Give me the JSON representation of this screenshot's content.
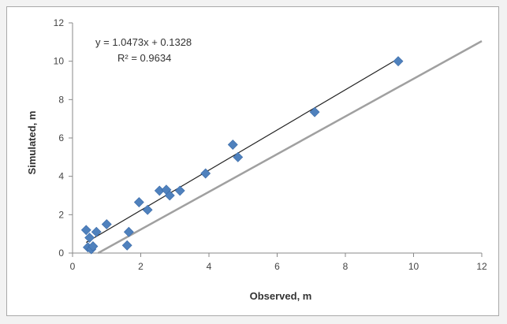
{
  "chart_data": {
    "type": "scatter",
    "title": "",
    "xlabel": "Observed, m",
    "ylabel": "Simulated, m",
    "xlim": [
      0,
      12
    ],
    "ylim": [
      0,
      12
    ],
    "xticks": [
      0,
      2,
      4,
      6,
      8,
      10,
      12
    ],
    "yticks": [
      0,
      2,
      4,
      6,
      8,
      10,
      12
    ],
    "tick_labels_x": [
      "0",
      "2",
      "4",
      "6",
      "8",
      "10",
      "12"
    ],
    "tick_labels_y": [
      "0",
      "2",
      "4",
      "6",
      "8",
      "10",
      "12"
    ],
    "grid": false,
    "legend": "none",
    "marker_color": "#4f81bd",
    "trendline_color": "#222222",
    "reference_line_color": "#a0a0a0",
    "points": [
      [
        0.4,
        1.2
      ],
      [
        0.45,
        0.3
      ],
      [
        0.5,
        0.8
      ],
      [
        0.55,
        0.2
      ],
      [
        0.6,
        0.35
      ],
      [
        0.7,
        1.1
      ],
      [
        1.0,
        1.5
      ],
      [
        1.6,
        0.4
      ],
      [
        1.65,
        1.1
      ],
      [
        1.95,
        2.65
      ],
      [
        2.2,
        2.25
      ],
      [
        2.55,
        3.25
      ],
      [
        2.75,
        3.3
      ],
      [
        2.85,
        3.0
      ],
      [
        3.15,
        3.25
      ],
      [
        3.9,
        4.15
      ],
      [
        4.7,
        5.65
      ],
      [
        4.85,
        5.0
      ],
      [
        7.1,
        7.35
      ],
      [
        9.55,
        10.0
      ]
    ],
    "trendline": {
      "slope": 1.0473,
      "intercept": 0.1328,
      "x_range": [
        0.4,
        9.55
      ],
      "equation": "y = 1.0473x + 0.1328",
      "r_squared": "R² = 0.9634"
    },
    "reference_line": {
      "from": [
        0.75,
        0
      ],
      "to": [
        12,
        11.05
      ]
    }
  }
}
